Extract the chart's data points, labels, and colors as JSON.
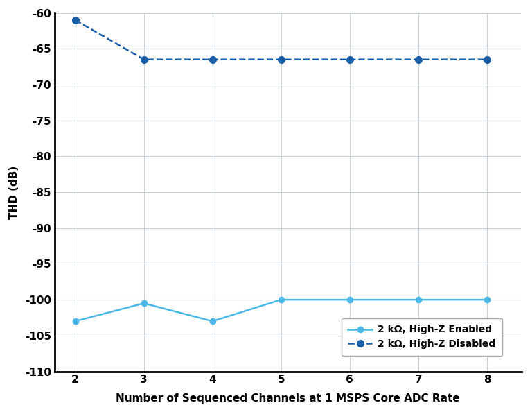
{
  "x": [
    2,
    3,
    4,
    5,
    6,
    7,
    8
  ],
  "highz_enabled": [
    -103,
    -100.5,
    -103,
    -100,
    -100,
    -100,
    -100
  ],
  "highz_disabled": [
    -61,
    -66.5,
    -66.5,
    -66.5,
    -66.5,
    -66.5,
    -66.5
  ],
  "color_enabled": "#4db8e8",
  "color_disabled": "#1a5fa8",
  "xlabel": "Number of Sequenced Channels at 1 MSPS Core ADC Rate",
  "ylabel": "THD (dB)",
  "ylim": [
    -110,
    -60
  ],
  "xlim": [
    1.7,
    8.5
  ],
  "yticks": [
    -110,
    -105,
    -100,
    -95,
    -90,
    -85,
    -80,
    -75,
    -70,
    -65,
    -60
  ],
  "xticks": [
    2,
    3,
    4,
    5,
    6,
    7,
    8
  ],
  "legend_enabled": "2 kΩ, High-Z Enabled",
  "legend_disabled": "2 kΩ, High-Z Disabled",
  "grid_color": "#c8d0d8",
  "bg_color": "#ffffff",
  "marker_size": 6,
  "marker_size_disabled": 7,
  "line_width": 1.8,
  "xlabel_fontsize": 11,
  "ylabel_fontsize": 11,
  "tick_fontsize": 11,
  "legend_fontsize": 10
}
